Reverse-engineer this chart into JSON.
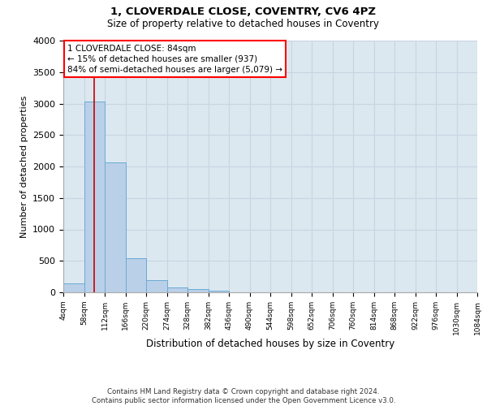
{
  "title": "1, CLOVERDALE CLOSE, COVENTRY, CV6 4PZ",
  "subtitle": "Size of property relative to detached houses in Coventry",
  "xlabel": "Distribution of detached houses by size in Coventry",
  "ylabel": "Number of detached properties",
  "bar_values": [
    140,
    3030,
    2060,
    545,
    195,
    75,
    55,
    30,
    0,
    0,
    0,
    0,
    0,
    0,
    0,
    0,
    0,
    0,
    0,
    0
  ],
  "bin_edges": [
    4,
    58,
    112,
    166,
    220,
    274,
    328,
    382,
    436,
    490,
    544,
    598,
    652,
    706,
    760,
    814,
    868,
    922,
    976,
    1030,
    1084
  ],
  "tick_labels": [
    "4sqm",
    "58sqm",
    "112sqm",
    "166sqm",
    "220sqm",
    "274sqm",
    "328sqm",
    "382sqm",
    "436sqm",
    "490sqm",
    "544sqm",
    "598sqm",
    "652sqm",
    "706sqm",
    "760sqm",
    "814sqm",
    "868sqm",
    "922sqm",
    "976sqm",
    "1030sqm",
    "1084sqm"
  ],
  "bar_color": "#bad0e8",
  "bar_edge_color": "#6aaad4",
  "grid_color": "#c8d4e0",
  "bg_color": "#dce8f0",
  "property_size": 84,
  "red_line_color": "#cc0000",
  "annotation_text": "1 CLOVERDALE CLOSE: 84sqm\n← 15% of detached houses are smaller (937)\n84% of semi-detached houses are larger (5,079) →",
  "ylim": [
    0,
    4000
  ],
  "yticks": [
    0,
    500,
    1000,
    1500,
    2000,
    2500,
    3000,
    3500,
    4000
  ],
  "footer_line1": "Contains HM Land Registry data © Crown copyright and database right 2024.",
  "footer_line2": "Contains public sector information licensed under the Open Government Licence v3.0."
}
